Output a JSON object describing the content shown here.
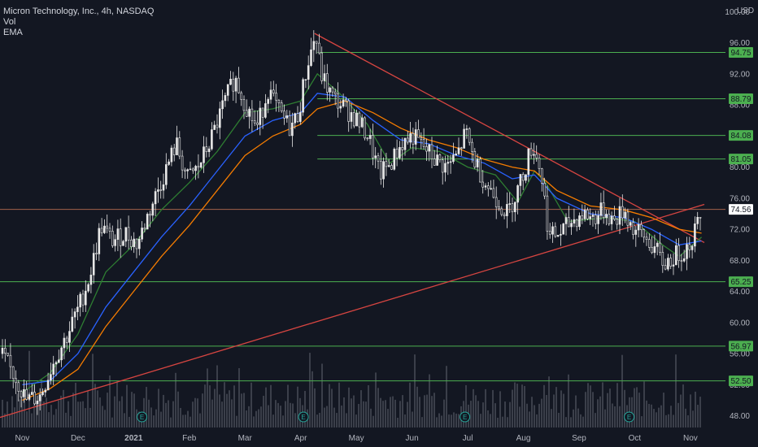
{
  "legend": {
    "title": "Micron Technology, Inc., 4h, NASDAQ",
    "vol": "Vol",
    "ema": "EMA"
  },
  "colors": {
    "background": "#131722",
    "candle": "#e8e8e8",
    "level": "#4caf50",
    "level_label_bg": "#4caf50",
    "trendline": "#d64541",
    "hline": "#b26a4f",
    "ema_fast": "#2e7d32",
    "ema_mid": "#2962ff",
    "ema_slow": "#f57c00",
    "volume": "#5d606b",
    "earnings": "#26a69a"
  },
  "chart_data": {
    "type": "candlestick",
    "title": "Micron Technology, Inc., 4h, NASDAQ",
    "currency": "USD",
    "y_axis": {
      "min": 46.5,
      "max": 101.5,
      "ticks": [
        "100.00",
        "96.00",
        "92.00",
        "88.00",
        "84.00",
        "80.00",
        "76.00",
        "72.00",
        "68.00",
        "64.00",
        "60.00",
        "56.00",
        "52.00",
        "48.00"
      ],
      "tick_values": [
        100,
        96,
        92,
        88,
        84,
        80,
        76,
        72,
        68,
        64,
        60,
        56,
        52,
        48
      ]
    },
    "x_axis": {
      "labels": [
        "Nov",
        "Dec",
        "2021",
        "Feb",
        "Mar",
        "Apr",
        "May",
        "Jun",
        "Jul",
        "Aug",
        "Sep",
        "Oct",
        "Nov"
      ],
      "positions": [
        0,
        1,
        2,
        3,
        4,
        5,
        6,
        7,
        8,
        9,
        10,
        11,
        12
      ],
      "position_unit": "month index (0 = Nov 2020, 12 = Nov 2021)",
      "range": [
        -0.4,
        12.25
      ]
    },
    "horizontal_levels": [
      {
        "label": "94.75",
        "value": 94.75
      },
      {
        "label": "88.79",
        "value": 88.79
      },
      {
        "label": "84.08",
        "value": 84.08
      },
      {
        "label": "81.05",
        "value": 81.05
      },
      {
        "label": "65.25",
        "value": 65.25
      },
      {
        "label": "56.97",
        "value": 56.97
      },
      {
        "label": "52.50",
        "value": 52.5
      }
    ],
    "last_price": {
      "label": "74.56",
      "value": 74.56
    },
    "trendlines": [
      {
        "name": "descending",
        "points": [
          [
            5.25,
            97.2
          ],
          [
            12.25,
            70.3
          ]
        ]
      },
      {
        "name": "ascending",
        "points": [
          [
            -0.4,
            47.8
          ],
          [
            12.25,
            75.2
          ]
        ]
      }
    ],
    "earnings_markers": [
      2.15,
      5.05,
      7.95,
      10.9
    ],
    "price_path": [
      [
        -0.4,
        56.0
      ],
      [
        -0.1,
        52.5
      ],
      [
        0.05,
        50.0
      ],
      [
        0.3,
        50.5
      ],
      [
        0.55,
        55.0
      ],
      [
        0.8,
        58.5
      ],
      [
        1.0,
        62.0
      ],
      [
        1.2,
        66.0
      ],
      [
        1.4,
        72.5
      ],
      [
        1.6,
        70.5
      ],
      [
        1.85,
        71.5
      ],
      [
        2.05,
        70.0
      ],
      [
        2.25,
        74.0
      ],
      [
        2.5,
        78.5
      ],
      [
        2.75,
        83.0
      ],
      [
        2.95,
        78.5
      ],
      [
        3.15,
        80.0
      ],
      [
        3.4,
        84.0
      ],
      [
        3.6,
        88.0
      ],
      [
        3.8,
        91.5
      ],
      [
        4.0,
        88.0
      ],
      [
        4.2,
        85.0
      ],
      [
        4.4,
        90.0
      ],
      [
        4.6,
        87.0
      ],
      [
        4.8,
        85.0
      ],
      [
        4.95,
        87.0
      ],
      [
        5.1,
        93.0
      ],
      [
        5.25,
        97.0
      ],
      [
        5.35,
        92.0
      ],
      [
        5.55,
        89.0
      ],
      [
        5.8,
        87.5
      ],
      [
        6.0,
        86.0
      ],
      [
        6.2,
        84.0
      ],
      [
        6.4,
        79.0
      ],
      [
        6.6,
        80.5
      ],
      [
        6.8,
        83.0
      ],
      [
        7.0,
        84.0
      ],
      [
        7.2,
        82.5
      ],
      [
        7.4,
        81.0
      ],
      [
        7.6,
        80.0
      ],
      [
        7.8,
        81.5
      ],
      [
        7.95,
        84.5
      ],
      [
        8.1,
        81.0
      ],
      [
        8.3,
        78.0
      ],
      [
        8.5,
        76.0
      ],
      [
        8.7,
        74.0
      ],
      [
        8.85,
        76.5
      ],
      [
        9.0,
        79.5
      ],
      [
        9.15,
        83.0
      ],
      [
        9.3,
        79.5
      ],
      [
        9.45,
        71.0
      ],
      [
        9.65,
        71.5
      ],
      [
        9.85,
        73.0
      ],
      [
        10.05,
        74.0
      ],
      [
        10.25,
        73.5
      ],
      [
        10.45,
        74.5
      ],
      [
        10.6,
        73.0
      ],
      [
        10.8,
        74.5
      ],
      [
        10.95,
        72.0
      ],
      [
        11.15,
        71.0
      ],
      [
        11.35,
        69.5
      ],
      [
        11.5,
        67.5
      ],
      [
        11.7,
        68.5
      ],
      [
        11.9,
        69.5
      ],
      [
        12.0,
        70.5
      ],
      [
        12.1,
        72.5
      ],
      [
        12.2,
        74.5
      ]
    ],
    "ema_lines": [
      {
        "name": "EMA fast",
        "points": [
          [
            0.0,
            51.0
          ],
          [
            0.5,
            53.5
          ],
          [
            1.0,
            58.5
          ],
          [
            1.5,
            66.5
          ],
          [
            2.0,
            70.0
          ],
          [
            2.5,
            74.5
          ],
          [
            3.0,
            78.0
          ],
          [
            3.5,
            82.0
          ],
          [
            4.0,
            87.0
          ],
          [
            4.5,
            87.5
          ],
          [
            5.0,
            88.5
          ],
          [
            5.3,
            92.0
          ],
          [
            5.7,
            89.5
          ],
          [
            6.2,
            85.5
          ],
          [
            6.6,
            80.5
          ],
          [
            7.0,
            82.5
          ],
          [
            7.5,
            82.0
          ],
          [
            8.0,
            80.0
          ],
          [
            8.5,
            79.0
          ],
          [
            8.9,
            75.5
          ],
          [
            9.2,
            79.5
          ],
          [
            9.4,
            78.0
          ],
          [
            9.8,
            73.0
          ],
          [
            10.5,
            73.5
          ],
          [
            11.0,
            73.0
          ],
          [
            11.5,
            70.0
          ],
          [
            11.8,
            68.5
          ],
          [
            12.2,
            71.0
          ]
        ]
      },
      {
        "name": "EMA mid",
        "points": [
          [
            0.0,
            52.0
          ],
          [
            0.5,
            52.5
          ],
          [
            1.0,
            56.0
          ],
          [
            1.5,
            62.0
          ],
          [
            2.0,
            66.5
          ],
          [
            2.5,
            71.0
          ],
          [
            3.0,
            75.0
          ],
          [
            3.5,
            79.5
          ],
          [
            4.0,
            84.0
          ],
          [
            4.5,
            86.0
          ],
          [
            5.0,
            87.0
          ],
          [
            5.3,
            89.5
          ],
          [
            5.8,
            89.0
          ],
          [
            6.3,
            86.0
          ],
          [
            6.8,
            83.5
          ],
          [
            7.3,
            83.0
          ],
          [
            7.8,
            81.5
          ],
          [
            8.3,
            80.5
          ],
          [
            8.8,
            78.5
          ],
          [
            9.2,
            79.0
          ],
          [
            9.6,
            76.0
          ],
          [
            10.2,
            74.0
          ],
          [
            10.8,
            73.5
          ],
          [
            11.3,
            72.0
          ],
          [
            11.8,
            70.0
          ],
          [
            12.2,
            70.5
          ]
        ]
      },
      {
        "name": "EMA slow",
        "points": [
          [
            0.0,
            50.0
          ],
          [
            0.5,
            51.5
          ],
          [
            1.0,
            54.0
          ],
          [
            1.5,
            59.5
          ],
          [
            2.0,
            64.0
          ],
          [
            2.5,
            68.5
          ],
          [
            3.0,
            72.5
          ],
          [
            3.5,
            77.0
          ],
          [
            4.0,
            81.5
          ],
          [
            4.5,
            84.0
          ],
          [
            5.0,
            85.5
          ],
          [
            5.3,
            87.5
          ],
          [
            5.8,
            88.5
          ],
          [
            6.3,
            87.0
          ],
          [
            6.8,
            85.0
          ],
          [
            7.3,
            83.5
          ],
          [
            7.8,
            82.5
          ],
          [
            8.3,
            81.0
          ],
          [
            8.8,
            80.0
          ],
          [
            9.2,
            79.5
          ],
          [
            9.6,
            77.0
          ],
          [
            10.2,
            75.0
          ],
          [
            10.8,
            74.5
          ],
          [
            11.3,
            73.5
          ],
          [
            11.8,
            72.0
          ],
          [
            12.2,
            71.5
          ]
        ]
      }
    ]
  }
}
